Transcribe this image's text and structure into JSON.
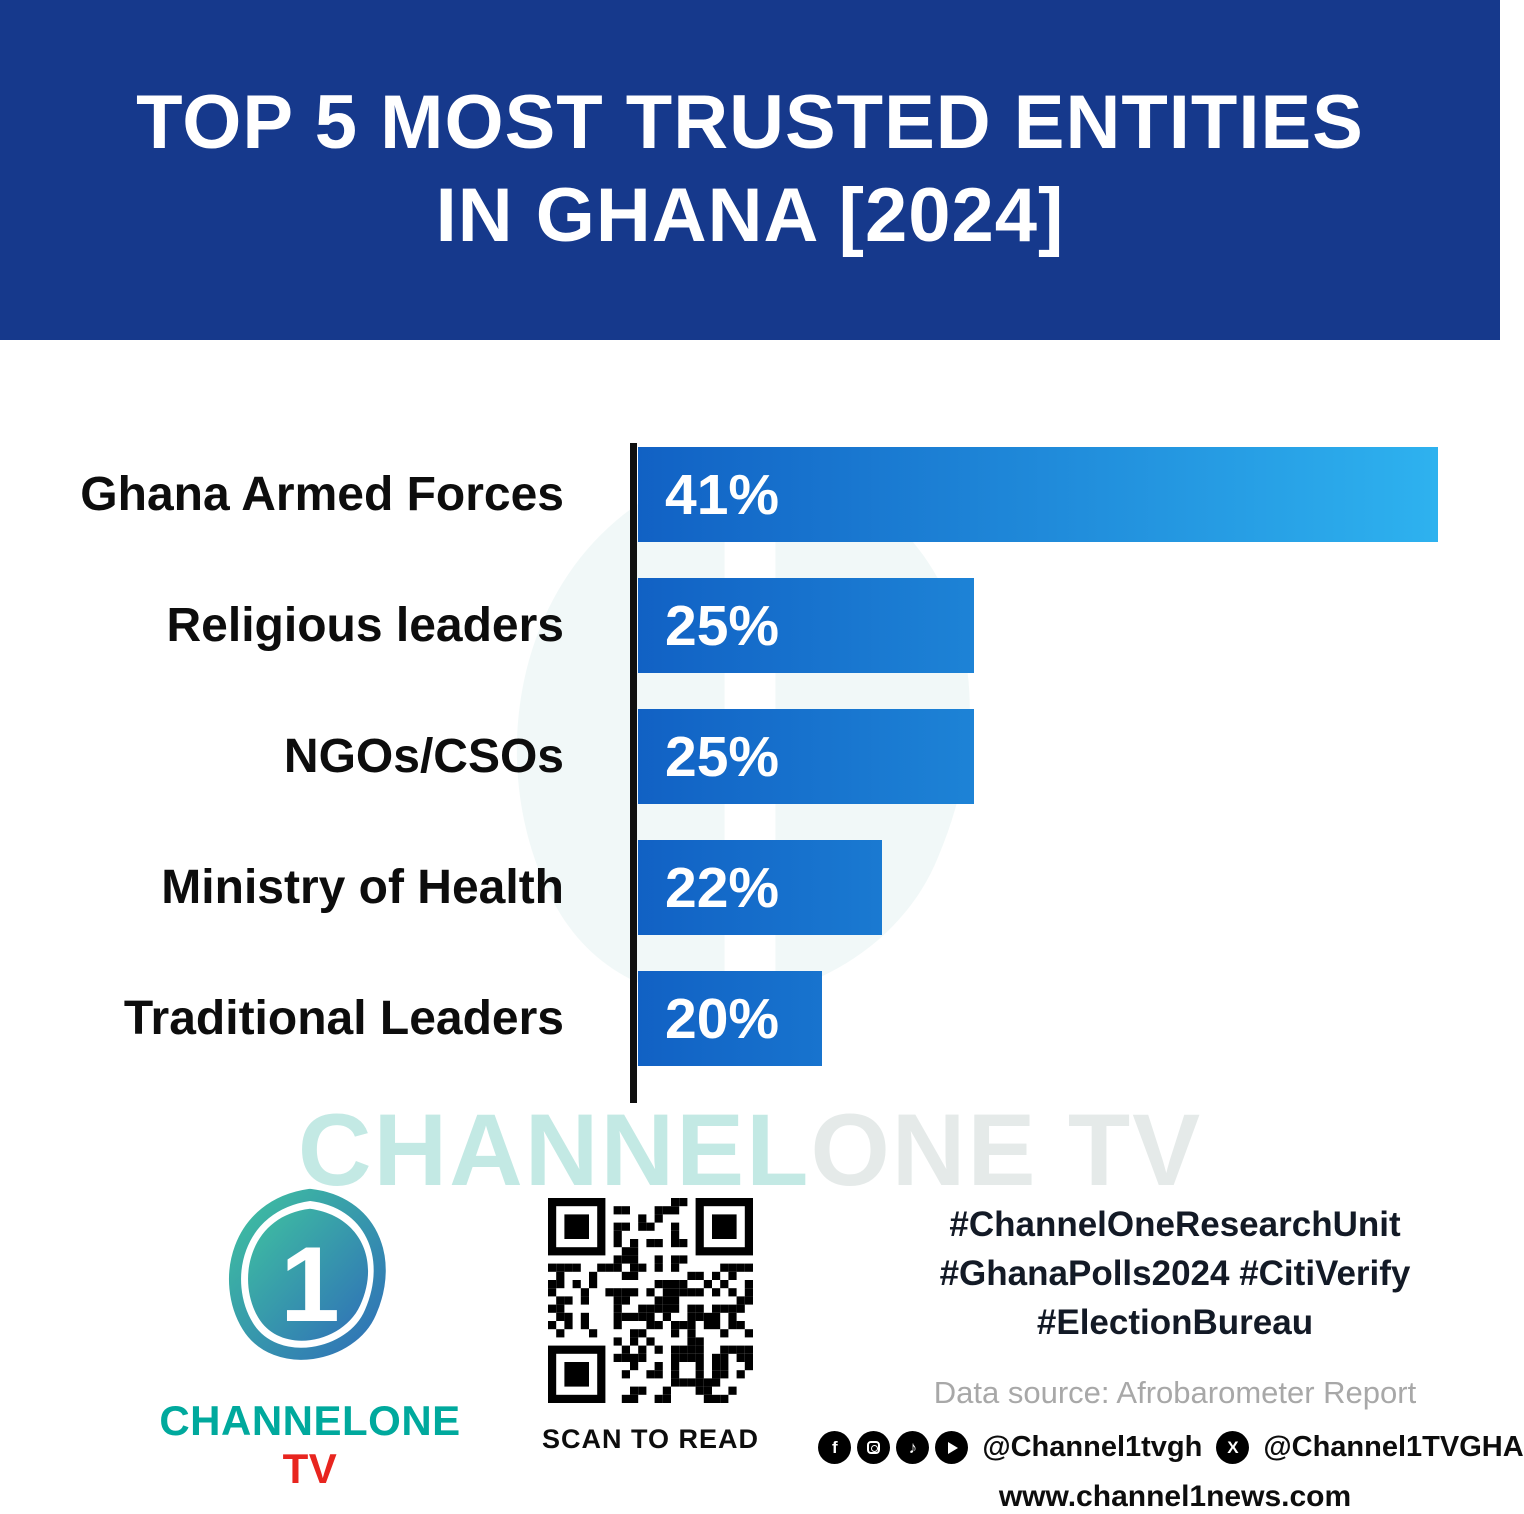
{
  "header": {
    "title_line1": "TOP 5 MOST TRUSTED ENTITIES",
    "title_line2": "IN GHANA [2024]"
  },
  "chart_data": {
    "type": "bar",
    "orientation": "horizontal",
    "title": "Top 5 Most Trusted Entities in Ghana [2024]",
    "categories": [
      "Ghana Armed Forces",
      "Religious leaders",
      "NGOs/CSOs",
      "Ministry of Health",
      "Traditional Leaders"
    ],
    "values": [
      41,
      25,
      25,
      22,
      20
    ],
    "value_labels": [
      "41%",
      "25%",
      "25%",
      "22%",
      "20%"
    ],
    "unit": "%",
    "xlim": [
      0,
      41
    ],
    "grid": false,
    "legend": false,
    "bar_visual_width_pct": [
      100,
      42,
      42,
      30.5,
      23
    ],
    "bar_gradient_start": "#1161c4",
    "bar_gradient_end": "#2eb2ef",
    "axis_color": "#101010"
  },
  "watermark": {
    "part1": "CHANNEL",
    "part2": "ONE TV"
  },
  "footer": {
    "logo_glyph": "1",
    "brand_part1": "CHANNELONE",
    "brand_part2": " TV",
    "brand_teal": "#00a99d",
    "brand_red": "#e8251f",
    "qr_caption": "SCAN TO READ",
    "hashtag_line1": "#ChannelOneResearchUnit",
    "hashtag_line2": "#GhanaPolls2024 #CitiVerify",
    "hashtag_line3": "#ElectionBureau",
    "data_source": "Data source: Afrobarometer Report",
    "social_handle_1": "@Channel1tvgh",
    "social_handle_2": "@Channel1TVGHA",
    "website": "www.channel1news.com"
  },
  "colors": {
    "header_bg": "#16398c"
  }
}
